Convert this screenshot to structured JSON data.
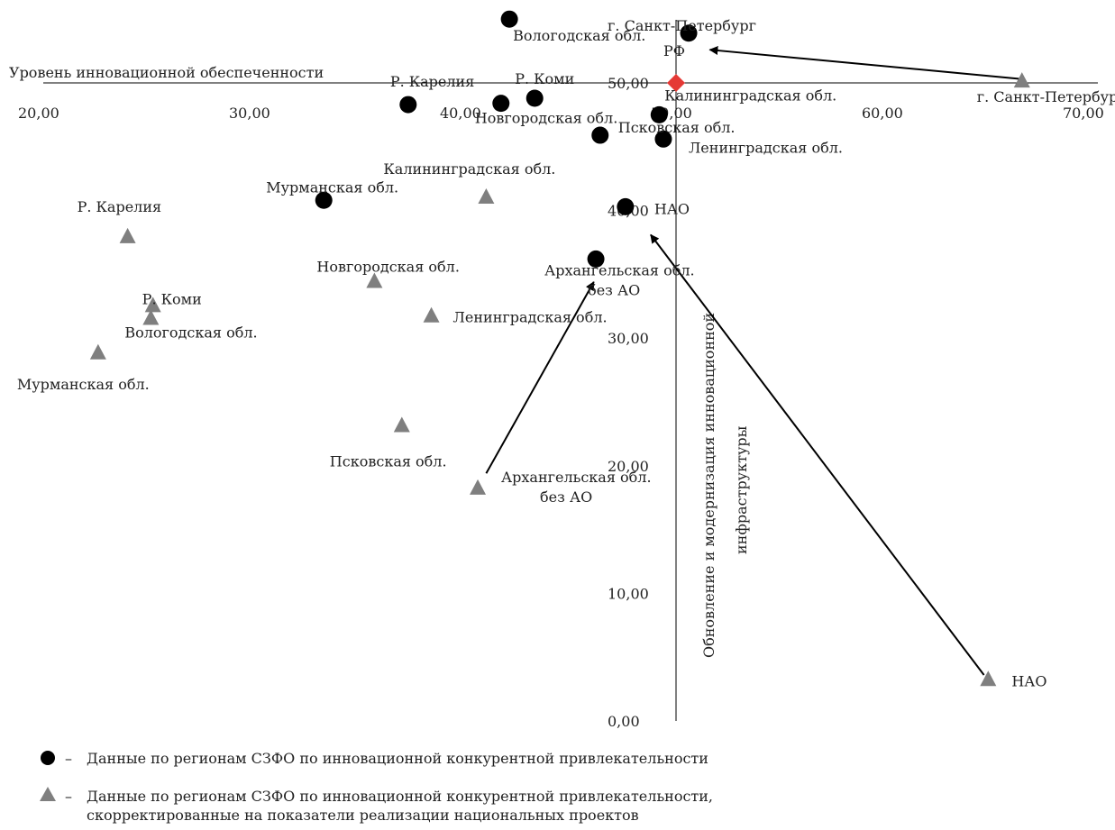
{
  "chart_data": {
    "type": "scatter",
    "x_axis": {
      "label": "Уровень инновационной обеспеченности",
      "range": [
        20,
        70
      ],
      "ticks": [
        "20,00",
        "30,00",
        "40,00",
        "50,00",
        "60,00",
        "70,00"
      ],
      "tick_values": [
        20,
        30,
        40,
        50,
        60,
        70
      ]
    },
    "y_axis": {
      "label_lines": [
        "Обновление и модернизация инновационной",
        "инфраструктуры"
      ],
      "range": [
        0,
        50
      ],
      "ticks": [
        "0,00",
        "10,00",
        "20,00",
        "30,00",
        "40,00",
        "50,00"
      ],
      "tick_values": [
        0,
        10,
        20,
        30,
        40,
        50
      ]
    },
    "grid": false,
    "series": [
      {
        "marker": "circle",
        "color": "#000000",
        "points": [
          {
            "label": "г. Санкт-Петербург",
            "x": 50.6,
            "y": 53.9
          },
          {
            "label": "Вологодская обл.",
            "x": 42.1,
            "y": 55.0
          },
          {
            "label": "Р. Карелия",
            "x": 37.3,
            "y": 48.3
          },
          {
            "label": "Р. Коми",
            "x": 43.3,
            "y": 48.8
          },
          {
            "label": "Новгородская обл.",
            "x": 41.7,
            "y": 48.4
          },
          {
            "label": "Калининградская обл.",
            "x": 49.2,
            "y": 47.5
          },
          {
            "label": "Псковская обл.",
            "x": 46.4,
            "y": 45.9
          },
          {
            "label": "Ленинградская обл.",
            "x": 49.4,
            "y": 45.6
          },
          {
            "label": "Мурманская обл.",
            "x": 33.3,
            "y": 40.8
          },
          {
            "label": "НАО",
            "x": 47.6,
            "y": 40.3
          },
          {
            "label": "Архангельская обл. без АО",
            "x": 46.2,
            "y": 36.2
          }
        ]
      },
      {
        "marker": "triangle",
        "color": "#7f7f7f",
        "points": [
          {
            "label": "г. Санкт-Петербург",
            "x": 66.4,
            "y": 50.2
          },
          {
            "label": "Калининградская обл.",
            "x": 41.0,
            "y": 41.1
          },
          {
            "label": "Р. Карелия",
            "x": 24.0,
            "y": 38.0
          },
          {
            "label": "Новгородская обл.",
            "x": 35.7,
            "y": 34.5
          },
          {
            "label": "Р. Коми",
            "x": 25.2,
            "y": 32.6
          },
          {
            "label": "Вологодская обл.",
            "x": 25.1,
            "y": 31.6
          },
          {
            "label": "Ленинградская обл.",
            "x": 38.4,
            "y": 31.8
          },
          {
            "label": "Мурманская обл.",
            "x": 22.6,
            "y": 28.9
          },
          {
            "label": "Псковская обл.",
            "x": 37.0,
            "y": 23.2
          },
          {
            "label": "Архангельская обл. без АО",
            "x": 40.6,
            "y": 18.3
          },
          {
            "label": "НАО",
            "x": 64.8,
            "y": 3.3
          }
        ]
      },
      {
        "marker": "diamond",
        "color": "#e53935",
        "points": [
          {
            "label": "РФ",
            "x": 50.0,
            "y": 50.0
          }
        ]
      }
    ],
    "arrows": [
      {
        "from": [
          66.4,
          50.3
        ],
        "to": [
          51.6,
          52.6
        ]
      },
      {
        "from": [
          64.6,
          3.6
        ],
        "to": [
          48.8,
          38.1
        ]
      },
      {
        "from": [
          41.0,
          19.4
        ],
        "to": [
          46.1,
          34.4
        ]
      }
    ],
    "legend": {
      "placement": "bottom-left",
      "items": [
        {
          "marker": "circle",
          "lines": [
            "Данные по регионам СЗФО по инновационной конкурентной привлекательности"
          ]
        },
        {
          "marker": "triangle",
          "lines": [
            "Данные по регионам СЗФО по инновационной конкурентной привлекательности,",
            "скорректированные на показатели реализации национальных проектов"
          ]
        }
      ]
    }
  }
}
